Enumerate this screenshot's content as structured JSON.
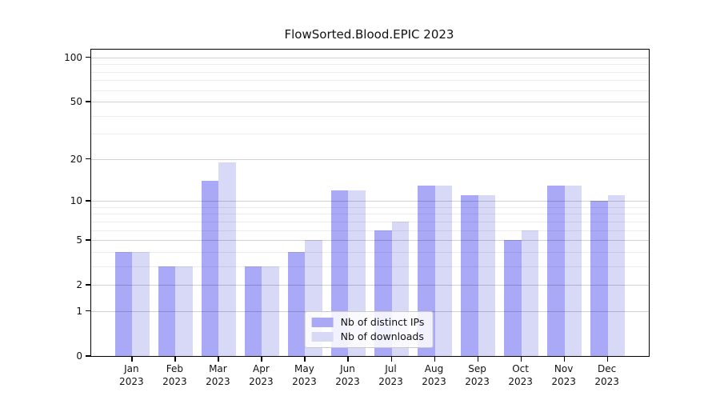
{
  "title": "FlowSorted.Blood.EPIC 2023",
  "chart_data": {
    "type": "bar",
    "title": "FlowSorted.Blood.EPIC 2023",
    "categories": [
      "Jan",
      "Feb",
      "Mar",
      "Apr",
      "May",
      "Jun",
      "Jul",
      "Aug",
      "Sep",
      "Oct",
      "Nov",
      "Dec"
    ],
    "category_year": "2023",
    "series": [
      {
        "name": "Nb of distinct IPs",
        "color": "#a9a9f7",
        "values": [
          4,
          3,
          14,
          3,
          4,
          12,
          6,
          13,
          11,
          5,
          13,
          10
        ]
      },
      {
        "name": "Nb of downloads",
        "color": "#d8d8f7",
        "values": [
          4,
          3,
          19,
          3,
          5,
          12,
          7,
          13,
          11,
          6,
          13,
          11
        ]
      }
    ],
    "yscale": "log1p",
    "ylim": [
      0,
      113
    ],
    "yticks": [
      0,
      1,
      2,
      5,
      10,
      20,
      50,
      100
    ],
    "yticks_minor": [
      3,
      4,
      6,
      7,
      8,
      9,
      30,
      40,
      60,
      70,
      80,
      90
    ],
    "grid": true,
    "legend_position": "lower center"
  },
  "colors": {
    "bar_ips": "#a9a9f7",
    "bar_downloads": "#d8d8f7",
    "major_grid": "#cfcfcf",
    "minor_grid": "#ebebeb",
    "spine": "#000000",
    "background": "#ffffff"
  }
}
